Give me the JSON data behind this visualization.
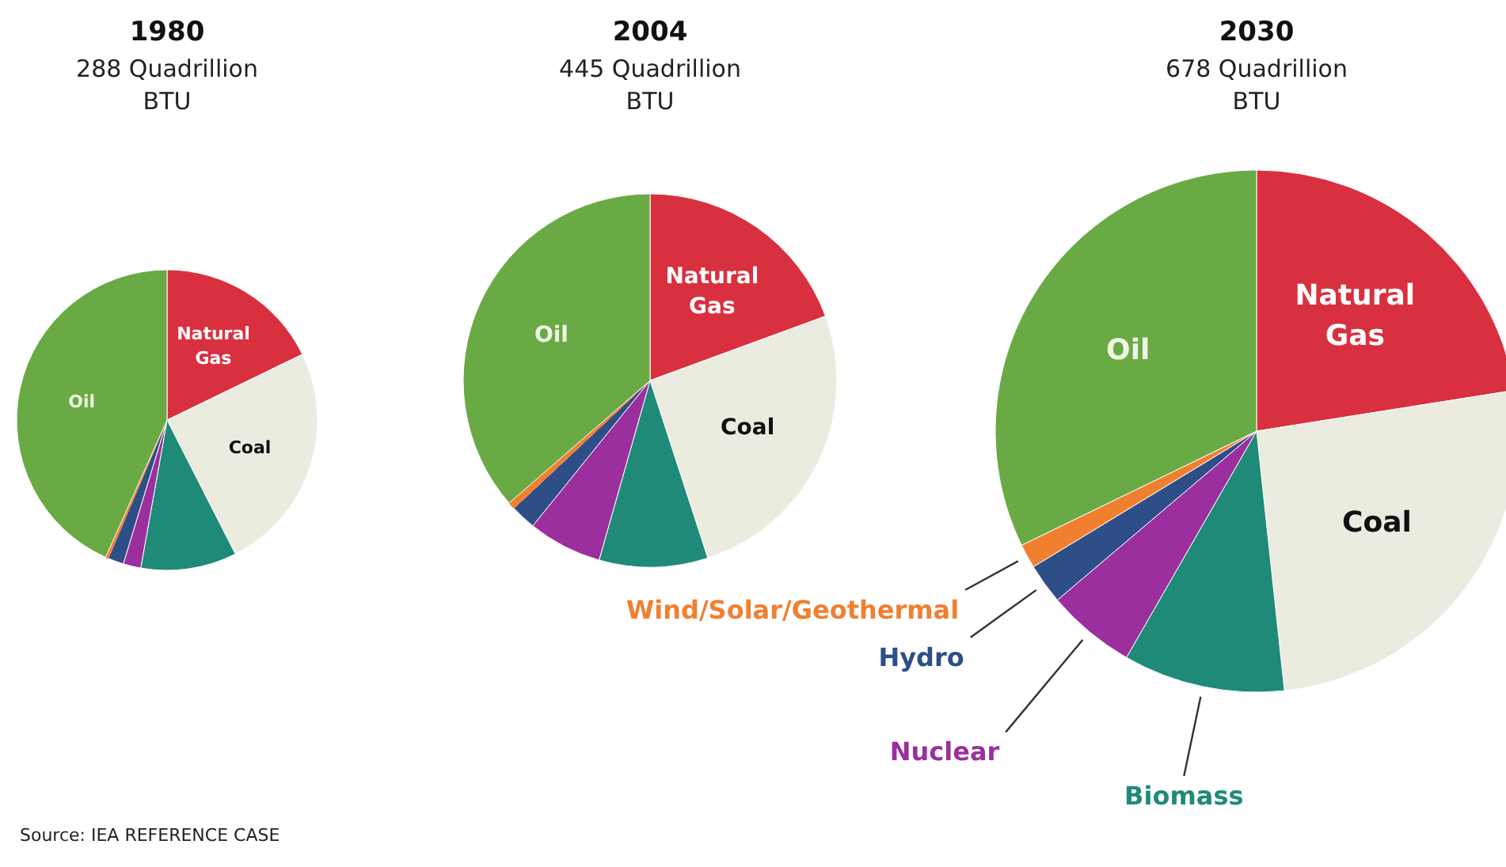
{
  "chart_data": [
    {
      "type": "pie",
      "title": "1980",
      "subtitle": "288 Quadrillion BTU",
      "categories": [
        "Natural Gas",
        "Coal",
        null,
        null,
        null,
        null,
        "Oil"
      ],
      "values": [
        17.8,
        24.7,
        10.3,
        1.9,
        1.7,
        0.3,
        43.3
      ],
      "colors": [
        "#d9303f",
        "#ecebe0",
        "#1f8a78",
        "#9b2f9e",
        "#2e4e87",
        "#f08030",
        "#6aaa45"
      ],
      "annotations": [
        "Source: IEA REFERENCE CASE"
      ]
    },
    {
      "type": "pie",
      "title": "2004",
      "subtitle": "445 Quadrillion BTU",
      "categories": [
        "Natural Gas",
        "Coal",
        null,
        null,
        null,
        null,
        "Oil"
      ],
      "values": [
        19.4,
        25.6,
        9.4,
        6.4,
        2.2,
        0.6,
        36.4
      ],
      "colors": [
        "#d9303f",
        "#ecebe0",
        "#1f8a78",
        "#9b2f9e",
        "#2e4e87",
        "#f08030",
        "#6aaa45"
      ]
    },
    {
      "type": "pie",
      "title": "2030",
      "subtitle": "678 Quadrillion BTU",
      "categories": [
        "Natural Gas",
        "Coal",
        "Biomass",
        "Nuclear",
        "Hydro",
        "Wind/Solar/Geothermal",
        "Oil"
      ],
      "values": [
        22.5,
        25.8,
        10.0,
        5.5,
        2.5,
        1.5,
        32.2
      ],
      "colors": [
        "#d9303f",
        "#ecebe0",
        "#1f8a78",
        "#9b2f9e",
        "#2e4e87",
        "#f08030",
        "#6aaa45"
      ]
    }
  ]
}
